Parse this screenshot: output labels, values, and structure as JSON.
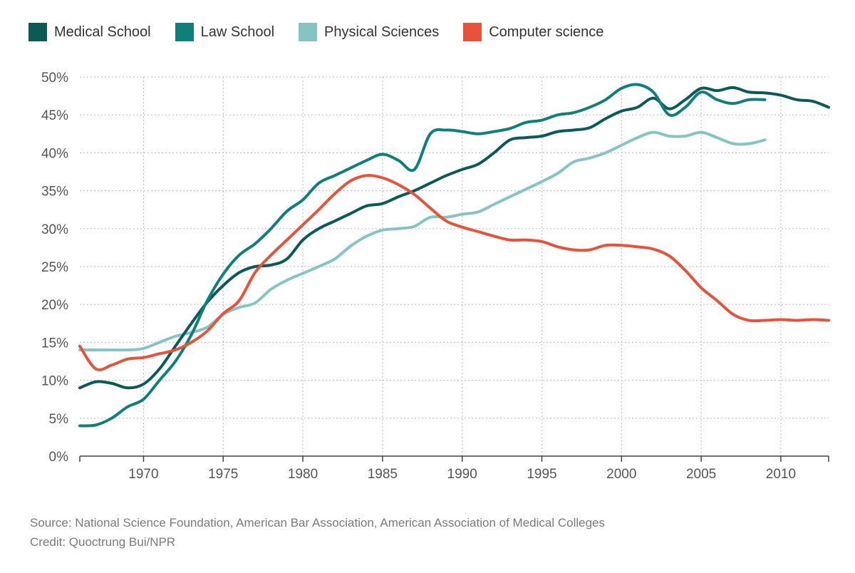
{
  "chart_data": {
    "type": "line",
    "title": "",
    "xlabel": "",
    "ylabel": "",
    "xlim": [
      1966,
      2013
    ],
    "ylim": [
      0,
      50
    ],
    "x_ticks": [
      1970,
      1975,
      1980,
      1985,
      1990,
      1995,
      2000,
      2005,
      2010
    ],
    "x_tick_labels": [
      "1970",
      "1975",
      "1980",
      "1985",
      "1990",
      "1995",
      "2000",
      "2005",
      "2010"
    ],
    "y_ticks": [
      0,
      5,
      10,
      15,
      20,
      25,
      30,
      35,
      40,
      45,
      50
    ],
    "y_tick_labels": [
      "0%",
      "5%",
      "10%",
      "15%",
      "20%",
      "25%",
      "30%",
      "35%",
      "40%",
      "45%",
      "50%"
    ],
    "grid": true,
    "legend_position": "top-left",
    "series": [
      {
        "name": "Medical School",
        "color": "#0b5a57",
        "x": [
          1966,
          1967,
          1968,
          1969,
          1970,
          1971,
          1972,
          1973,
          1974,
          1975,
          1976,
          1977,
          1978,
          1979,
          1980,
          1981,
          1982,
          1983,
          1984,
          1985,
          1986,
          1987,
          1988,
          1989,
          1990,
          1991,
          1992,
          1993,
          1994,
          1995,
          1996,
          1997,
          1998,
          1999,
          2000,
          2001,
          2002,
          2003,
          2004,
          2005,
          2006,
          2007,
          2008,
          2009,
          2010,
          2011,
          2012,
          2013
        ],
        "values": [
          9.0,
          9.8,
          9.6,
          9.0,
          9.5,
          11.5,
          14.5,
          17.5,
          20.3,
          22.5,
          24.2,
          25.0,
          25.2,
          26.0,
          28.5,
          30.0,
          31.0,
          32.0,
          33.0,
          33.3,
          34.2,
          35.0,
          36.0,
          37.0,
          37.8,
          38.5,
          40.0,
          41.7,
          42.0,
          42.2,
          42.8,
          43.0,
          43.3,
          44.5,
          45.5,
          46.0,
          47.2,
          45.8,
          47.0,
          48.5,
          48.2,
          48.6,
          48.0,
          47.9,
          47.6,
          47.0,
          46.8,
          46.0
        ]
      },
      {
        "name": "Law School",
        "color": "#0f7f7c",
        "x": [
          1966,
          1967,
          1968,
          1969,
          1970,
          1971,
          1972,
          1973,
          1974,
          1975,
          1976,
          1977,
          1978,
          1979,
          1980,
          1981,
          1982,
          1983,
          1984,
          1985,
          1986,
          1987,
          1988,
          1989,
          1990,
          1991,
          1992,
          1993,
          1994,
          1995,
          1996,
          1997,
          1998,
          1999,
          2000,
          2001,
          2002,
          2003,
          2004,
          2005,
          2006,
          2007,
          2008,
          2009
        ],
        "values": [
          4.0,
          4.1,
          5.0,
          6.5,
          7.5,
          10.0,
          12.5,
          16.0,
          20.5,
          24.0,
          26.5,
          28.0,
          30.0,
          32.3,
          33.8,
          36.0,
          37.0,
          38.0,
          39.0,
          39.8,
          39.0,
          37.8,
          42.5,
          43.0,
          42.8,
          42.5,
          42.8,
          43.2,
          44.0,
          44.3,
          45.0,
          45.3,
          46.0,
          47.0,
          48.5,
          49.0,
          48.0,
          45.0,
          46.0,
          48.0,
          47.0,
          46.5,
          47.0,
          47.0
        ]
      },
      {
        "name": "Physical Sciences",
        "color": "#86c4c2",
        "x": [
          1966,
          1967,
          1968,
          1969,
          1970,
          1971,
          1972,
          1973,
          1974,
          1975,
          1976,
          1977,
          1978,
          1979,
          1980,
          1981,
          1982,
          1983,
          1984,
          1985,
          1986,
          1987,
          1988,
          1989,
          1990,
          1991,
          1992,
          1993,
          1994,
          1995,
          1996,
          1997,
          1998,
          1999,
          2000,
          2001,
          2002,
          2003,
          2004,
          2005,
          2006,
          2007,
          2008,
          2009
        ],
        "values": [
          14.0,
          14.0,
          14.0,
          14.0,
          14.2,
          15.0,
          15.8,
          16.3,
          17.0,
          18.7,
          19.6,
          20.2,
          22.0,
          23.2,
          24.1,
          25.0,
          26.0,
          27.7,
          29.0,
          29.8,
          30.0,
          30.3,
          31.5,
          31.5,
          31.9,
          32.2,
          33.2,
          34.2,
          35.2,
          36.2,
          37.3,
          38.8,
          39.3,
          40.0,
          41.0,
          42.0,
          42.7,
          42.2,
          42.2,
          42.7,
          42.0,
          41.2,
          41.2,
          41.7
        ]
      },
      {
        "name": "Computer science",
        "color": "#e8513a",
        "x": [
          1966,
          1967,
          1968,
          1969,
          1970,
          1971,
          1972,
          1973,
          1974,
          1975,
          1976,
          1977,
          1978,
          1979,
          1980,
          1981,
          1982,
          1983,
          1984,
          1985,
          1986,
          1987,
          1988,
          1989,
          1990,
          1991,
          1992,
          1993,
          1994,
          1995,
          1996,
          1997,
          1998,
          1999,
          2000,
          2001,
          2002,
          2003,
          2004,
          2005,
          2006,
          2007,
          2008,
          2009,
          2010,
          2011,
          2012,
          2013
        ],
        "values": [
          14.5,
          11.5,
          12.0,
          12.8,
          13.0,
          13.5,
          14.0,
          15.0,
          16.5,
          18.8,
          20.5,
          24.2,
          26.5,
          28.5,
          30.5,
          32.5,
          34.6,
          36.3,
          37.0,
          36.7,
          35.8,
          34.5,
          32.7,
          31.0,
          30.2,
          29.6,
          29.0,
          28.5,
          28.5,
          28.3,
          27.6,
          27.2,
          27.2,
          27.8,
          27.8,
          27.6,
          27.3,
          26.4,
          24.5,
          22.2,
          20.5,
          18.7,
          17.9,
          17.9,
          18.0,
          17.9,
          18.0,
          17.9
        ]
      }
    ]
  },
  "footer": {
    "source": "Source: National Science Foundation, American Bar Association, American Association of Medical Colleges",
    "credit": "Credit: Quoctrung Bui/NPR"
  }
}
